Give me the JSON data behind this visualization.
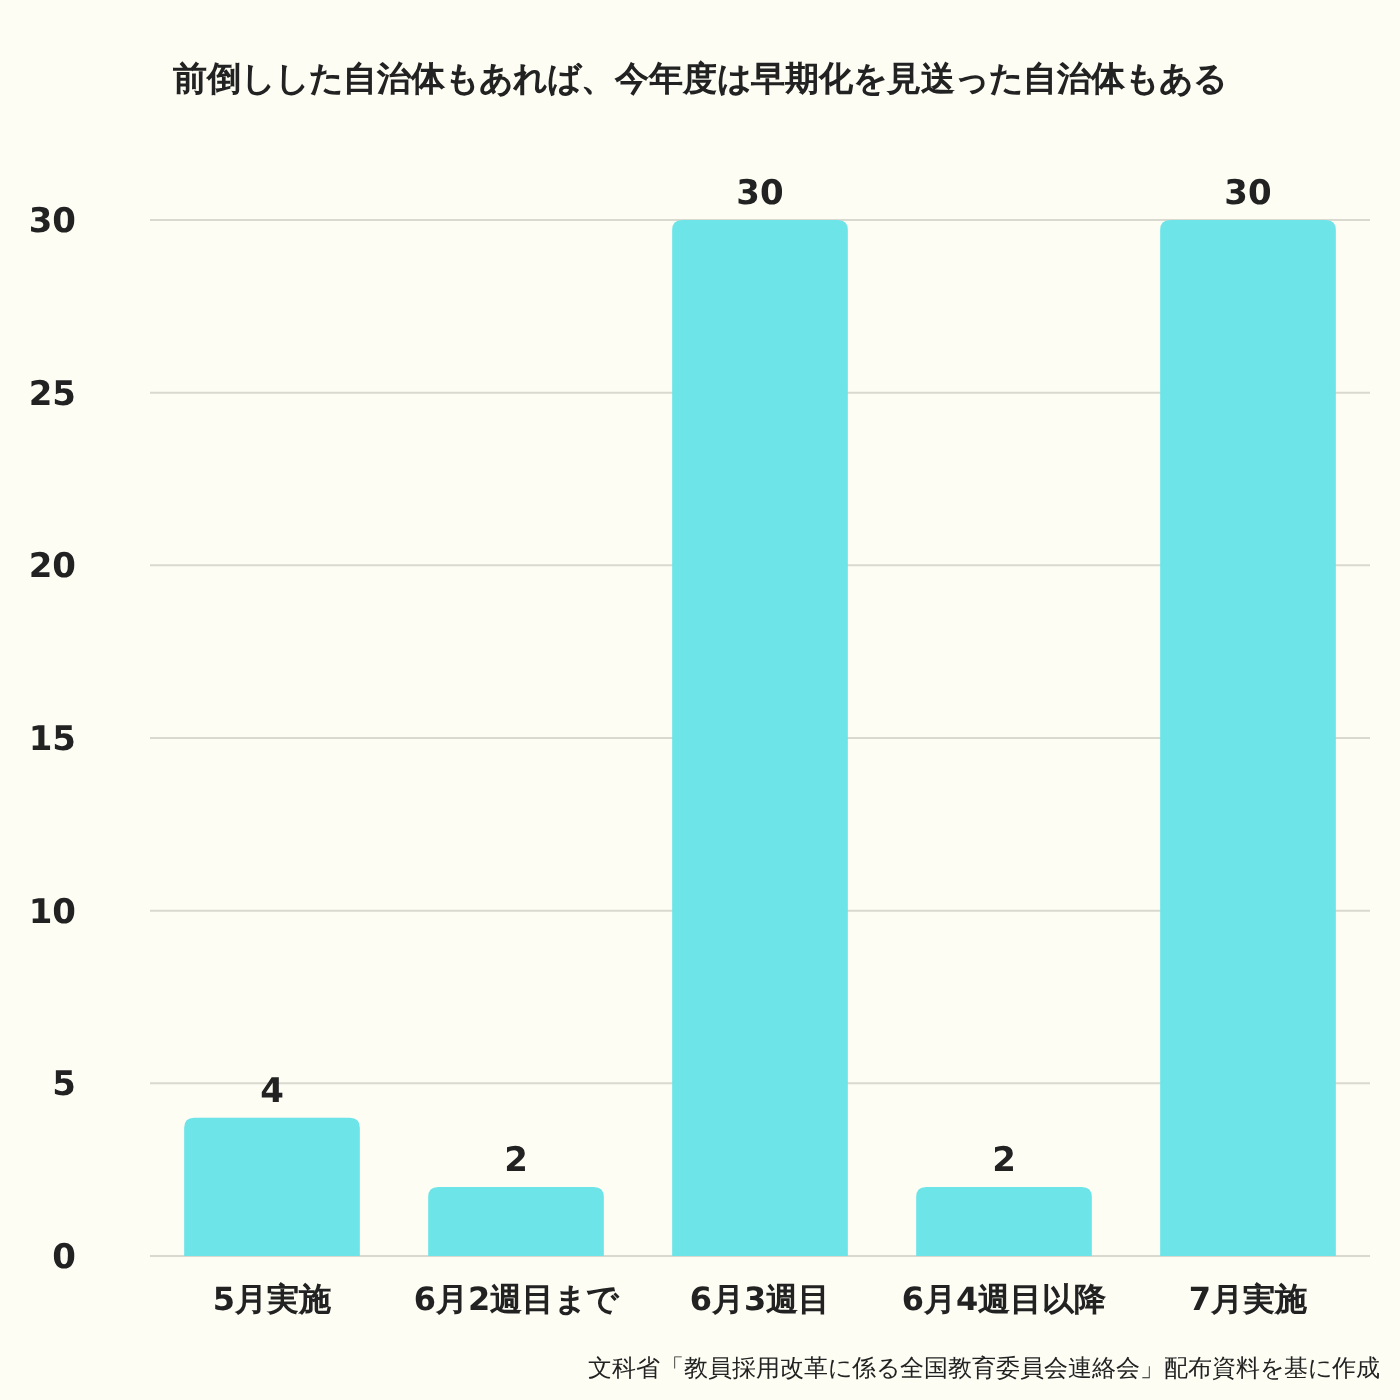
{
  "chart_data": {
    "type": "bar",
    "title": "前倒しした自治体もあれば、今年度は早期化を見送った自治体もある",
    "categories": [
      "5月実施",
      "6月2週目まで",
      "6月3週目",
      "6月4週目以降",
      "7月実施"
    ],
    "values": [
      4,
      2,
      30,
      2,
      30
    ],
    "color": "#6de4e8",
    "ylim": [
      0,
      30
    ],
    "yticks": [
      0,
      5,
      10,
      15,
      20,
      25,
      30
    ],
    "grid": "y",
    "data_labels": true,
    "annotations": [
      "文科省「教員採用改革に係る全国教育委員会連絡会」配布資料を基に作成"
    ]
  }
}
